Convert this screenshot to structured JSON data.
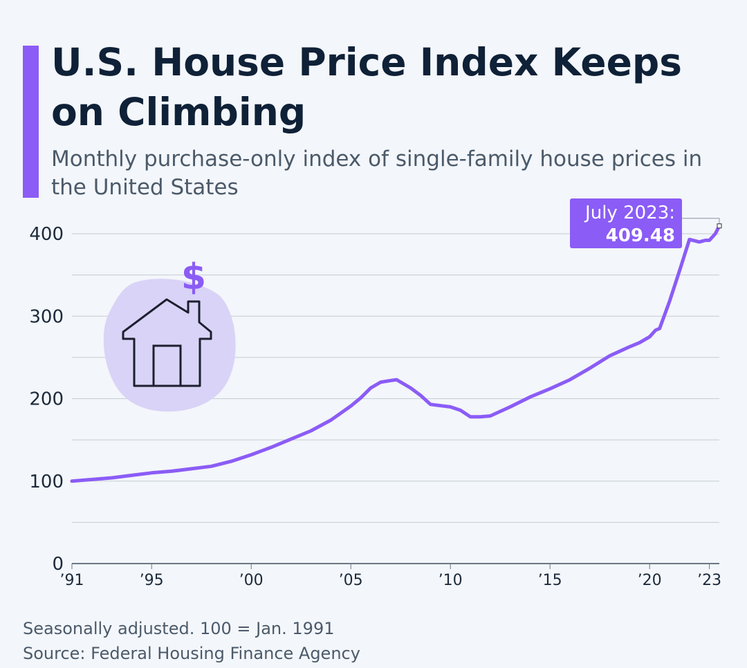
{
  "title": "U.S. House Price Index Keeps on Climbing",
  "subtitle": "Monthly purchase-only index of single-family house prices in the United States",
  "notes": "Seasonally adjusted. 100 = Jan. 1991",
  "source": "Source: Federal Housing Finance Agency",
  "colors": {
    "line": "#8b5cf6",
    "accent_bar": "#8b5cf6",
    "callout_bg": "#8b5cf6",
    "icon_blob": "#d9d3f7",
    "grid": "#c5ccd6",
    "text_dark": "#0f2137",
    "text_muted": "#4b5a6a"
  },
  "icons": [
    "house-dollar-icon"
  ],
  "chart_data": {
    "type": "line",
    "xlabel": "",
    "ylabel": "",
    "xlim": [
      1991,
      2023.5
    ],
    "ylim": [
      0,
      400
    ],
    "yticks": [
      0,
      100,
      200,
      300,
      400
    ],
    "xticks": [
      {
        "value": 1991,
        "label": "’91"
      },
      {
        "value": 1995,
        "label": "’95"
      },
      {
        "value": 2000,
        "label": "’00"
      },
      {
        "value": 2005,
        "label": "’05"
      },
      {
        "value": 2010,
        "label": "’10"
      },
      {
        "value": 2015,
        "label": "’15"
      },
      {
        "value": 2020,
        "label": "’20"
      },
      {
        "value": 2023,
        "label": "’23"
      }
    ],
    "grid": true,
    "series": [
      {
        "x": [
          1991.0,
          1992.0,
          1993.0,
          1994.0,
          1995.0,
          1996.0,
          1997.0,
          1998.0,
          1999.0,
          2000.0,
          2001.0,
          2002.0,
          2003.0,
          2004.0,
          2005.0,
          2005.5,
          2006.0,
          2006.5,
          2007.0,
          2007.3,
          2008.0,
          2008.5,
          2009.0,
          2010.0,
          2010.5,
          2011.0,
          2011.5,
          2012.0,
          2013.0,
          2014.0,
          2015.0,
          2016.0,
          2017.0,
          2018.0,
          2019.0,
          2019.5,
          2020.0,
          2020.3,
          2020.5,
          2021.0,
          2021.5,
          2022.0,
          2022.5,
          2022.8,
          2023.0,
          2023.3,
          2023.5
        ],
        "y": [
          100,
          102,
          104,
          107,
          110,
          112,
          115,
          118,
          124,
          132,
          141,
          151,
          161,
          174,
          191,
          201,
          213,
          220,
          222,
          223,
          213,
          204,
          193,
          190,
          186,
          178,
          178,
          179,
          190,
          202,
          212,
          223,
          237,
          252,
          263,
          268,
          275,
          283,
          285,
          318,
          355,
          393,
          390,
          392,
          392,
          400,
          409.48
        ]
      }
    ],
    "annotation": {
      "line1": "July 2023:",
      "line2": "409.48",
      "x": 2023.5,
      "y": 409.48
    }
  }
}
